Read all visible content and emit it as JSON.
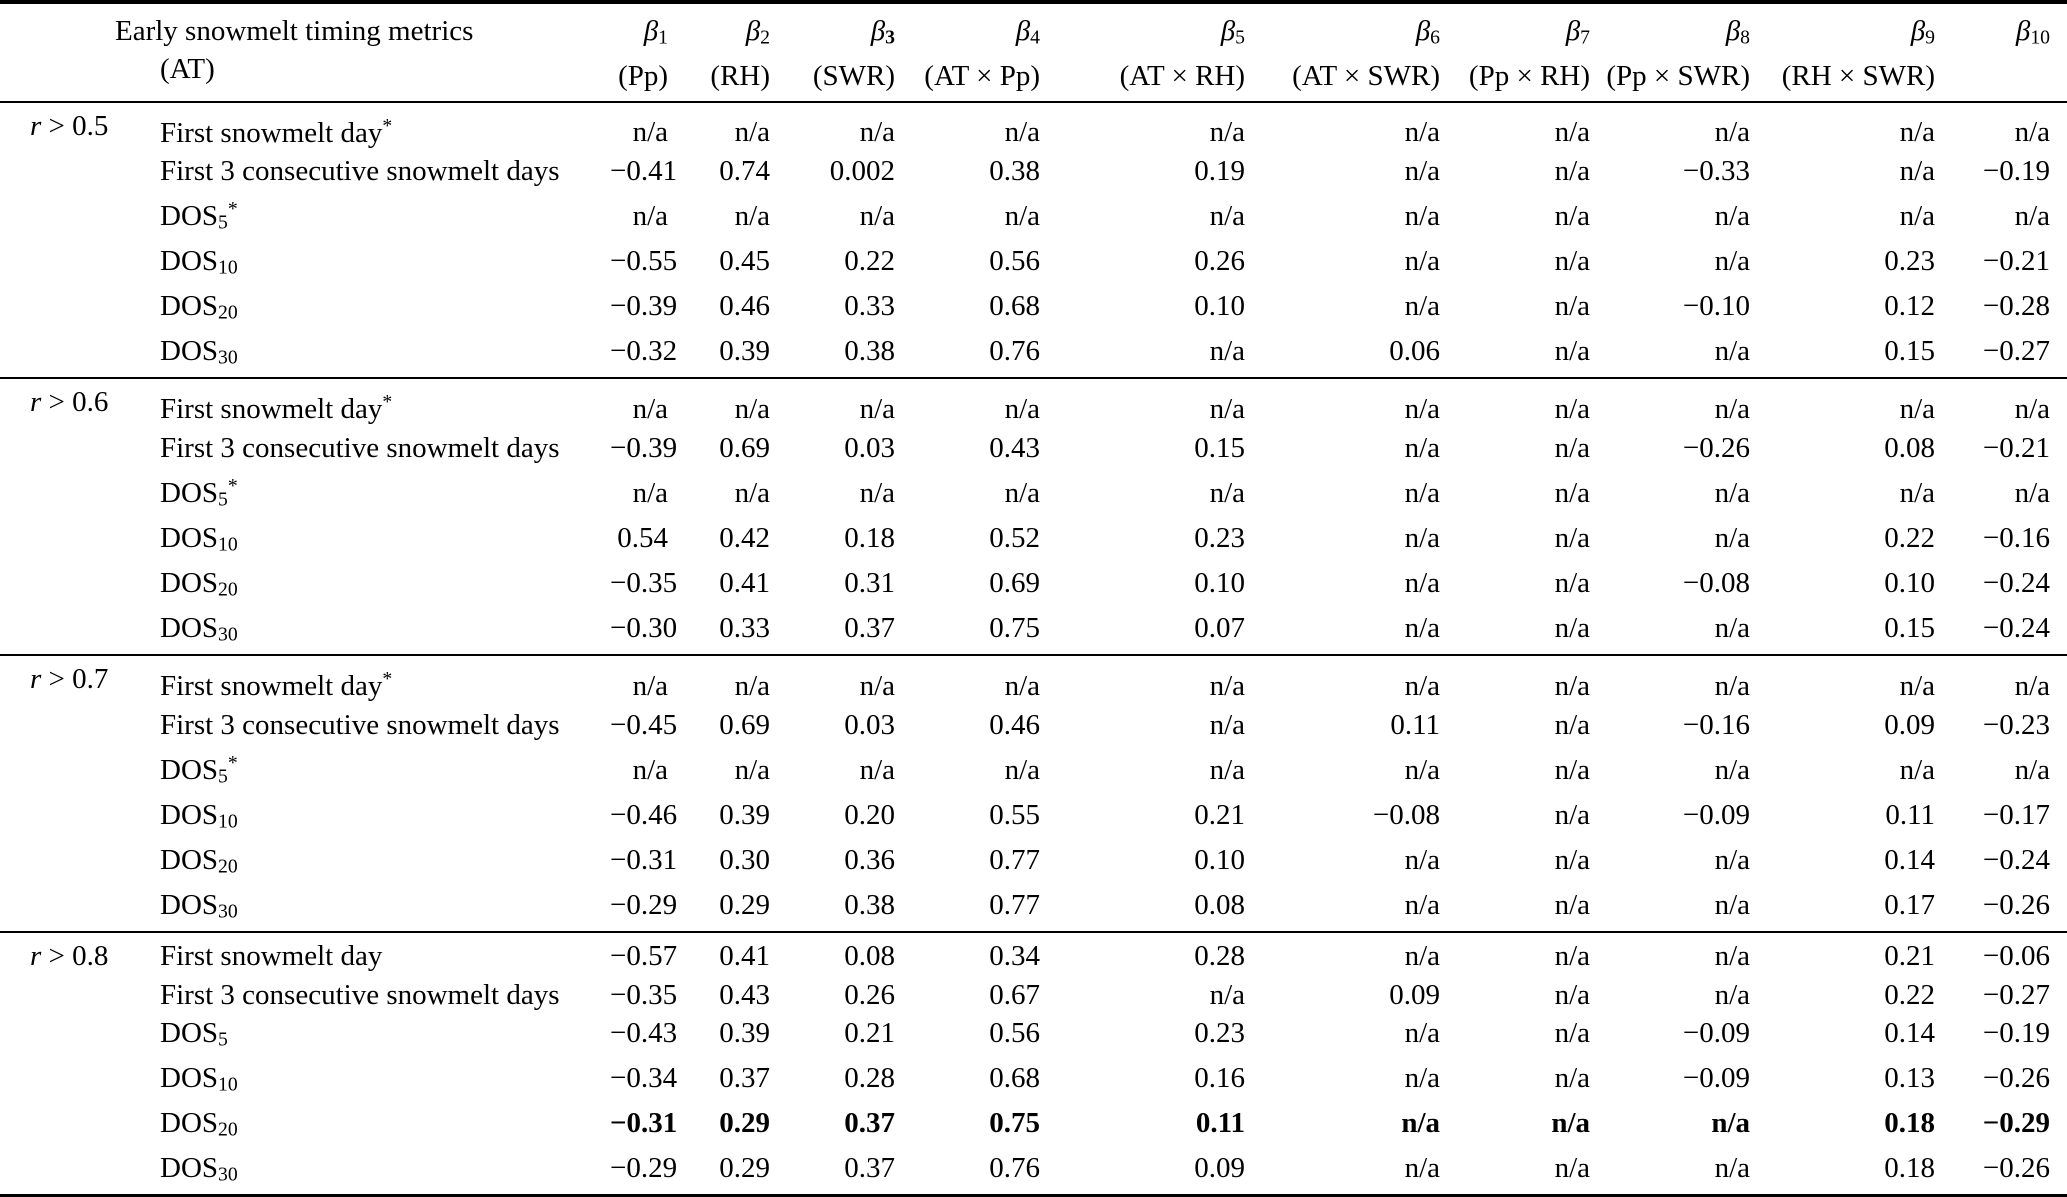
{
  "page": {
    "background": "#ffffff",
    "text_color": "#000000"
  },
  "table": {
    "header": {
      "metrics_title_line1": "Early snowmelt timing metrics",
      "metrics_title_line2": "(AT)",
      "beta_columns": [
        {
          "symbol": "β",
          "sub": "1",
          "bold_sub": false,
          "predictor": "(Pp)"
        },
        {
          "symbol": "β",
          "sub": "2",
          "bold_sub": false,
          "predictor": "(RH)"
        },
        {
          "symbol": "β",
          "sub": "3",
          "bold_sub": true,
          "predictor": "(SWR)"
        },
        {
          "symbol": "β",
          "sub": "4",
          "bold_sub": false,
          "predictor": "(AT × Pp)"
        },
        {
          "symbol": "β",
          "sub": "5",
          "bold_sub": false,
          "predictor": "(AT × RH)"
        },
        {
          "symbol": "β",
          "sub": "6",
          "bold_sub": false,
          "predictor": "(AT × SWR)"
        },
        {
          "symbol": "β",
          "sub": "7",
          "bold_sub": false,
          "predictor": "(Pp × RH)"
        },
        {
          "symbol": "β",
          "sub": "8",
          "bold_sub": false,
          "predictor": "(Pp × SWR)"
        },
        {
          "symbol": "β",
          "sub": "9",
          "bold_sub": false,
          "predictor": "(RH × SWR)"
        },
        {
          "symbol": "β",
          "sub": "10",
          "bold_sub": false,
          "predictor": ""
        }
      ]
    },
    "groups": [
      {
        "condition": {
          "var": "r",
          "rest": "> 0.5"
        },
        "rows": [
          {
            "metric": {
              "text": "First snowmelt day",
              "sub": "",
              "sup": "*"
            },
            "bold": false,
            "values": [
              "n/a",
              "n/a",
              "n/a",
              "n/a",
              "n/a",
              "n/a",
              "n/a",
              "n/a",
              "n/a",
              "n/a"
            ]
          },
          {
            "metric": {
              "text": "First 3 consecutive snowmelt days",
              "sub": "",
              "sup": ""
            },
            "bold": false,
            "values": [
              "−0.41",
              "0.74",
              "0.002",
              "0.38",
              "0.19",
              "n/a",
              "n/a",
              "−0.33",
              "n/a",
              "−0.19"
            ]
          },
          {
            "metric": {
              "text": "DOS",
              "sub": "5",
              "sup": "*"
            },
            "bold": false,
            "values": [
              "n/a",
              "n/a",
              "n/a",
              "n/a",
              "n/a",
              "n/a",
              "n/a",
              "n/a",
              "n/a",
              "n/a"
            ]
          },
          {
            "metric": {
              "text": "DOS",
              "sub": "10",
              "sup": ""
            },
            "bold": false,
            "values": [
              "−0.55",
              "0.45",
              "0.22",
              "0.56",
              "0.26",
              "n/a",
              "n/a",
              "n/a",
              "0.23",
              "−0.21"
            ]
          },
          {
            "metric": {
              "text": "DOS",
              "sub": "20",
              "sup": ""
            },
            "bold": false,
            "values": [
              "−0.39",
              "0.46",
              "0.33",
              "0.68",
              "0.10",
              "n/a",
              "n/a",
              "−0.10",
              "0.12",
              "−0.28"
            ]
          },
          {
            "metric": {
              "text": "DOS",
              "sub": "30",
              "sup": ""
            },
            "bold": false,
            "values": [
              "−0.32",
              "0.39",
              "0.38",
              "0.76",
              "n/a",
              "0.06",
              "n/a",
              "n/a",
              "0.15",
              "−0.27"
            ]
          }
        ]
      },
      {
        "condition": {
          "var": "r",
          "rest": "> 0.6"
        },
        "rows": [
          {
            "metric": {
              "text": "First snowmelt day",
              "sub": "",
              "sup": "*"
            },
            "bold": false,
            "values": [
              "n/a",
              "n/a",
              "n/a",
              "n/a",
              "n/a",
              "n/a",
              "n/a",
              "n/a",
              "n/a",
              "n/a"
            ]
          },
          {
            "metric": {
              "text": "First 3 consecutive snowmelt days",
              "sub": "",
              "sup": ""
            },
            "bold": false,
            "values": [
              "−0.39",
              "0.69",
              "0.03",
              "0.43",
              "0.15",
              "n/a",
              "n/a",
              "−0.26",
              "0.08",
              "−0.21"
            ]
          },
          {
            "metric": {
              "text": "DOS",
              "sub": "5",
              "sup": "*"
            },
            "bold": false,
            "values": [
              "n/a",
              "n/a",
              "n/a",
              "n/a",
              "n/a",
              "n/a",
              "n/a",
              "n/a",
              "n/a",
              "n/a"
            ]
          },
          {
            "metric": {
              "text": "DOS",
              "sub": "10",
              "sup": ""
            },
            "bold": false,
            "values": [
              "0.54",
              "0.42",
              "0.18",
              "0.52",
              "0.23",
              "n/a",
              "n/a",
              "n/a",
              "0.22",
              "−0.16"
            ]
          },
          {
            "metric": {
              "text": "DOS",
              "sub": "20",
              "sup": ""
            },
            "bold": false,
            "values": [
              "−0.35",
              "0.41",
              "0.31",
              "0.69",
              "0.10",
              "n/a",
              "n/a",
              "−0.08",
              "0.10",
              "−0.24"
            ]
          },
          {
            "metric": {
              "text": "DOS",
              "sub": "30",
              "sup": ""
            },
            "bold": false,
            "values": [
              "−0.30",
              "0.33",
              "0.37",
              "0.75",
              "0.07",
              "n/a",
              "n/a",
              "n/a",
              "0.15",
              "−0.24"
            ]
          }
        ]
      },
      {
        "condition": {
          "var": "r",
          "rest": "> 0.7"
        },
        "rows": [
          {
            "metric": {
              "text": "First snowmelt day",
              "sub": "",
              "sup": "*"
            },
            "bold": false,
            "values": [
              "n/a",
              "n/a",
              "n/a",
              "n/a",
              "n/a",
              "n/a",
              "n/a",
              "n/a",
              "n/a",
              "n/a"
            ]
          },
          {
            "metric": {
              "text": "First 3 consecutive snowmelt days",
              "sub": "",
              "sup": ""
            },
            "bold": false,
            "values": [
              "−0.45",
              "0.69",
              "0.03",
              "0.46",
              "n/a",
              "0.11",
              "n/a",
              "−0.16",
              "0.09",
              "−0.23"
            ]
          },
          {
            "metric": {
              "text": "DOS",
              "sub": "5",
              "sup": "*"
            },
            "bold": false,
            "values": [
              "n/a",
              "n/a",
              "n/a",
              "n/a",
              "n/a",
              "n/a",
              "n/a",
              "n/a",
              "n/a",
              "n/a"
            ]
          },
          {
            "metric": {
              "text": "DOS",
              "sub": "10",
              "sup": ""
            },
            "bold": false,
            "values": [
              "−0.46",
              "0.39",
              "0.20",
              "0.55",
              "0.21",
              "−0.08",
              "n/a",
              "−0.09",
              "0.11",
              "−0.17"
            ]
          },
          {
            "metric": {
              "text": "DOS",
              "sub": "20",
              "sup": ""
            },
            "bold": false,
            "values": [
              "−0.31",
              "0.30",
              "0.36",
              "0.77",
              "0.10",
              "n/a",
              "n/a",
              "n/a",
              "0.14",
              "−0.24"
            ]
          },
          {
            "metric": {
              "text": "DOS",
              "sub": "30",
              "sup": ""
            },
            "bold": false,
            "values": [
              "−0.29",
              "0.29",
              "0.38",
              "0.77",
              "0.08",
              "n/a",
              "n/a",
              "n/a",
              "0.17",
              "−0.26"
            ]
          }
        ]
      },
      {
        "condition": {
          "var": "r",
          "rest": "> 0.8"
        },
        "rows": [
          {
            "metric": {
              "text": "First snowmelt day",
              "sub": "",
              "sup": ""
            },
            "bold": false,
            "values": [
              "−0.57",
              "0.41",
              "0.08",
              "0.34",
              "0.28",
              "n/a",
              "n/a",
              "n/a",
              "0.21",
              "−0.06"
            ]
          },
          {
            "metric": {
              "text": "First 3 consecutive snowmelt days",
              "sub": "",
              "sup": ""
            },
            "bold": false,
            "values": [
              "−0.35",
              "0.43",
              "0.26",
              "0.67",
              "n/a",
              "0.09",
              "n/a",
              "n/a",
              "0.22",
              "−0.27"
            ]
          },
          {
            "metric": {
              "text": "DOS",
              "sub": "5",
              "sup": ""
            },
            "bold": false,
            "values": [
              "−0.43",
              "0.39",
              "0.21",
              "0.56",
              "0.23",
              "n/a",
              "n/a",
              "−0.09",
              "0.14",
              "−0.19"
            ]
          },
          {
            "metric": {
              "text": "DOS",
              "sub": "10",
              "sup": ""
            },
            "bold": false,
            "values": [
              "−0.34",
              "0.37",
              "0.28",
              "0.68",
              "0.16",
              "n/a",
              "n/a",
              "−0.09",
              "0.13",
              "−0.26"
            ]
          },
          {
            "metric": {
              "text": "DOS",
              "sub": "20",
              "sup": ""
            },
            "bold": true,
            "values": [
              "−0.31",
              "0.29",
              "0.37",
              "0.75",
              "0.11",
              "n/a",
              "n/a",
              "n/a",
              "0.18",
              "−0.29"
            ]
          },
          {
            "metric": {
              "text": "DOS",
              "sub": "30",
              "sup": ""
            },
            "bold": false,
            "values": [
              "−0.29",
              "0.29",
              "0.37",
              "0.76",
              "0.09",
              "n/a",
              "n/a",
              "n/a",
              "0.18",
              "−0.26"
            ]
          }
        ]
      }
    ]
  }
}
